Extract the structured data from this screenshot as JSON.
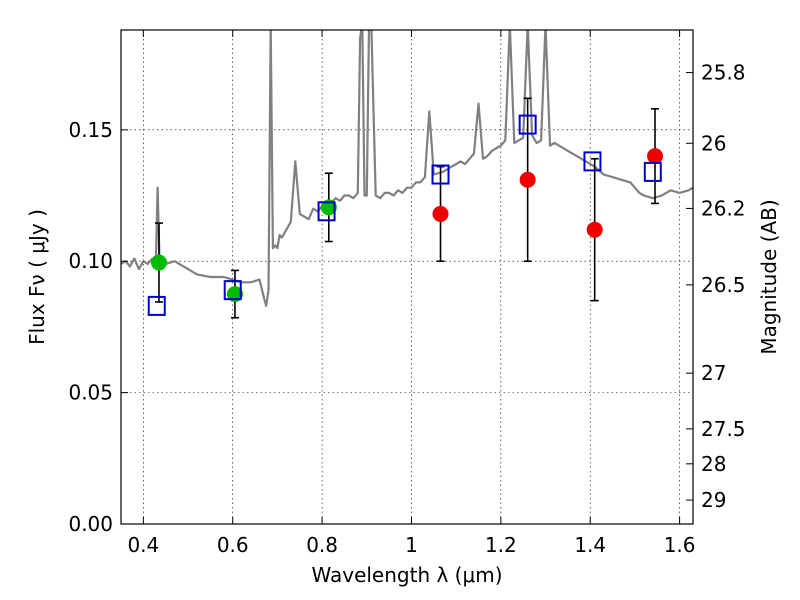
{
  "chart_data": {
    "type": "scatter",
    "xlabel": "Wavelength  λ (μm)",
    "ylabel": "Flux  Fν  ( μJy )",
    "y2label": "Magnitude (AB)",
    "xlim": [
      0.35,
      1.63
    ],
    "ylim": [
      0.0,
      0.188
    ],
    "grid": true,
    "x_ticks": [
      0.4,
      0.6,
      0.8,
      1.0,
      1.2,
      1.4,
      1.6
    ],
    "x_tick_labels": [
      "0.4",
      "0.6",
      "0.8",
      "1",
      "1.2",
      "1.4",
      "1.6"
    ],
    "y_ticks": [
      0.0,
      0.05,
      0.1,
      0.15
    ],
    "y_tick_labels": [
      "0.00",
      "0.05",
      "0.10",
      "0.15"
    ],
    "mag_ticks": [
      {
        "label": "25.8",
        "flux": 0.1718
      },
      {
        "label": "26",
        "flux": 0.1449
      },
      {
        "label": "26.2",
        "flux": 0.1201
      },
      {
        "label": "26.5",
        "flux": 0.091
      },
      {
        "label": "27",
        "flux": 0.0574
      },
      {
        "label": "27.5",
        "flux": 0.0362
      },
      {
        "label": "28",
        "flux": 0.0229
      },
      {
        "label": "29",
        "flux": 0.0091
      }
    ],
    "colors": {
      "model": "#808080",
      "green": "#00bb00",
      "red": "#ee0000",
      "model_points": "#0000cc",
      "errorbar": "#000000"
    },
    "series": [
      {
        "type": "line",
        "color": "#808080",
        "x": [
          0.35,
          0.36,
          0.37,
          0.38,
          0.39,
          0.4,
          0.41,
          0.42,
          0.428,
          0.432,
          0.436,
          0.44,
          0.45,
          0.47,
          0.5,
          0.52,
          0.55,
          0.58,
          0.6,
          0.62,
          0.64,
          0.66,
          0.67,
          0.675,
          0.68,
          0.685,
          0.69,
          0.695,
          0.7,
          0.705,
          0.71,
          0.72,
          0.73,
          0.74,
          0.75,
          0.76,
          0.77,
          0.78,
          0.79,
          0.8,
          0.81,
          0.82,
          0.83,
          0.84,
          0.85,
          0.86,
          0.87,
          0.88,
          0.885,
          0.89,
          0.895,
          0.9,
          0.905,
          0.91,
          0.92,
          0.93,
          0.94,
          0.95,
          0.96,
          0.97,
          0.98,
          0.99,
          1.0,
          1.01,
          1.02,
          1.03,
          1.04,
          1.05,
          1.07,
          1.09,
          1.1,
          1.11,
          1.12,
          1.13,
          1.14,
          1.15,
          1.16,
          1.17,
          1.18,
          1.19,
          1.2,
          1.21,
          1.22,
          1.23,
          1.24,
          1.25,
          1.26,
          1.27,
          1.28,
          1.29,
          1.3,
          1.31,
          1.32,
          1.33,
          1.34,
          1.35,
          1.37,
          1.39,
          1.41,
          1.43,
          1.45,
          1.47,
          1.49,
          1.5,
          1.51,
          1.52,
          1.54,
          1.56,
          1.58,
          1.6,
          1.62,
          1.63
        ],
        "y": [
          0.099,
          0.1,
          0.098,
          0.101,
          0.097,
          0.1,
          0.099,
          0.101,
          0.1,
          0.128,
          0.102,
          0.098,
          0.099,
          0.1,
          0.097,
          0.095,
          0.094,
          0.094,
          0.093,
          0.092,
          0.092,
          0.093,
          0.086,
          0.083,
          0.089,
          0.19,
          0.105,
          0.106,
          0.105,
          0.11,
          0.109,
          0.112,
          0.115,
          0.138,
          0.118,
          0.117,
          0.116,
          0.12,
          0.119,
          0.121,
          0.123,
          0.122,
          0.124,
          0.123,
          0.125,
          0.125,
          0.124,
          0.126,
          0.185,
          0.19,
          0.125,
          0.125,
          0.19,
          0.19,
          0.125,
          0.124,
          0.126,
          0.126,
          0.125,
          0.127,
          0.126,
          0.128,
          0.128,
          0.13,
          0.13,
          0.132,
          0.157,
          0.133,
          0.134,
          0.136,
          0.137,
          0.138,
          0.137,
          0.139,
          0.141,
          0.16,
          0.139,
          0.14,
          0.142,
          0.143,
          0.144,
          0.146,
          0.19,
          0.145,
          0.146,
          0.147,
          0.19,
          0.148,
          0.145,
          0.146,
          0.19,
          0.144,
          0.145,
          0.144,
          0.143,
          0.142,
          0.14,
          0.138,
          0.136,
          0.133,
          0.132,
          0.131,
          0.13,
          0.128,
          0.126,
          0.125,
          0.124,
          0.125,
          0.127,
          0.126,
          0.127,
          0.128
        ]
      },
      {
        "type": "scatter",
        "marker": "circle",
        "color": "#00bb00",
        "x": [
          0.435,
          0.605,
          0.815
        ],
        "y": [
          0.0995,
          0.0875,
          0.1205
        ],
        "y_err": [
          0.015,
          0.009,
          0.013
        ]
      },
      {
        "type": "scatter",
        "marker": "circle",
        "color": "#ee0000",
        "x": [
          1.065,
          1.26,
          1.41,
          1.545
        ],
        "y": [
          0.118,
          0.131,
          0.112,
          0.14
        ],
        "y_err": [
          0.018,
          0.031,
          0.027,
          0.018
        ]
      },
      {
        "type": "scatter",
        "marker": "square",
        "color": "#0000cc",
        "x": [
          0.43,
          0.6,
          0.81,
          1.065,
          1.26,
          1.405,
          1.54
        ],
        "y": [
          0.083,
          0.089,
          0.119,
          0.133,
          0.152,
          0.138,
          0.134
        ]
      }
    ]
  }
}
